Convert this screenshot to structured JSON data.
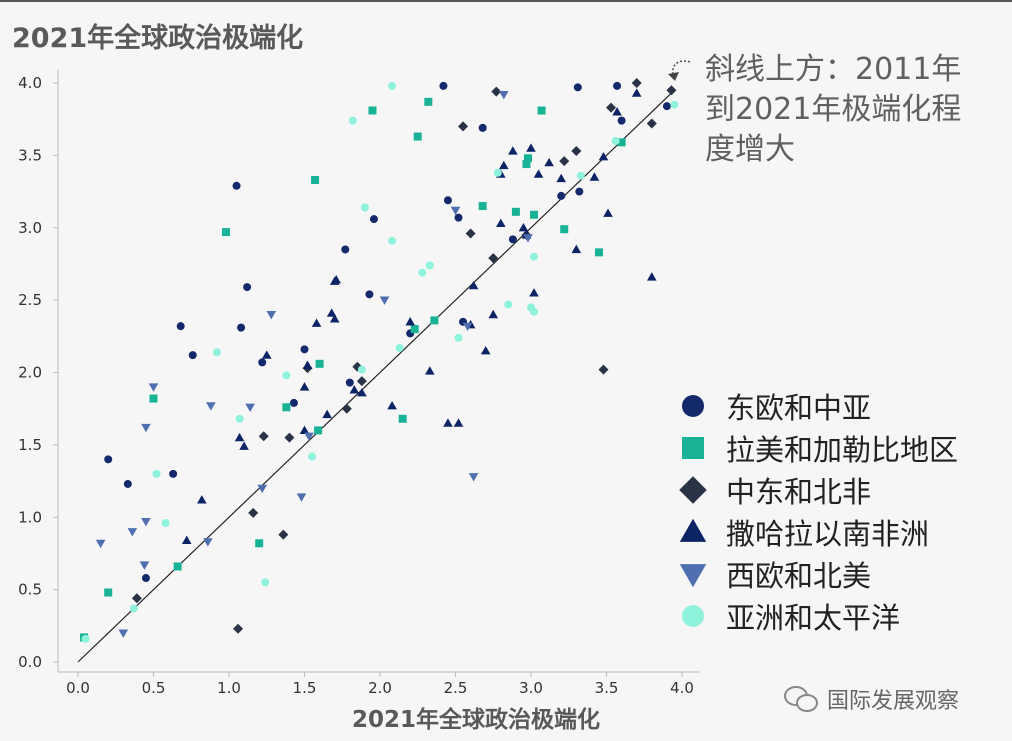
{
  "title": "2021年全球政治极端化",
  "annotation": "斜线上方：2011年\n到2021年极端化程\n度增大",
  "watermark": "国际发展观察",
  "colors": {
    "east_europe": "#13296b",
    "latin_america": "#17b394",
    "middle_east": "#2a3246",
    "sub_saharan": "#0c2466",
    "west_europe": "#4f6fb0",
    "asia_pacific": "#8ef2dc"
  },
  "legend": [
    {
      "key": "east_europe",
      "label": "东欧和中亚",
      "shape": "circle"
    },
    {
      "key": "latin_america",
      "label": "拉美和加勒比地区",
      "shape": "square"
    },
    {
      "key": "middle_east",
      "label": "中东和北非",
      "shape": "diamond"
    },
    {
      "key": "sub_saharan",
      "label": "撒哈拉以南非洲",
      "shape": "triangle-up"
    },
    {
      "key": "west_europe",
      "label": "西欧和北美",
      "shape": "triangle-down"
    },
    {
      "key": "asia_pacific",
      "label": "亚洲和太平洋",
      "shape": "circle"
    }
  ],
  "chart_data": {
    "type": "scatter",
    "title": "2021年全球政治极端化",
    "xlabel": "2021年全球政治极端化",
    "ylabel": "",
    "xlim": [
      0,
      4
    ],
    "ylim": [
      0,
      4
    ],
    "xticks": [
      "0.0",
      "0.5",
      "1.0",
      "1.5",
      "2.0",
      "2.5",
      "3.0",
      "3.5",
      "4.0"
    ],
    "yticks": [
      "0.0",
      "0.5",
      "1.0",
      "1.5",
      "2.0",
      "2.5",
      "3.0",
      "3.5",
      "4.0"
    ],
    "diagonal": [
      [
        0,
        0
      ],
      [
        3.95,
        3.95
      ]
    ],
    "series": [
      {
        "name": "东欧和中亚",
        "key": "east_europe",
        "points": [
          [
            0.2,
            1.4
          ],
          [
            0.33,
            1.23
          ],
          [
            0.45,
            0.58
          ],
          [
            0.63,
            1.3
          ],
          [
            0.68,
            2.32
          ],
          [
            0.76,
            2.12
          ],
          [
            1.05,
            3.29
          ],
          [
            1.08,
            2.31
          ],
          [
            1.12,
            2.59
          ],
          [
            1.22,
            2.07
          ],
          [
            1.43,
            1.79
          ],
          [
            1.5,
            2.16
          ],
          [
            1.77,
            2.85
          ],
          [
            1.8,
            1.93
          ],
          [
            1.93,
            2.54
          ],
          [
            1.96,
            3.06
          ],
          [
            2.2,
            2.27
          ],
          [
            2.42,
            3.98
          ],
          [
            2.45,
            3.19
          ],
          [
            2.52,
            3.07
          ],
          [
            2.55,
            2.35
          ],
          [
            2.68,
            3.69
          ],
          [
            2.88,
            2.92
          ],
          [
            3.2,
            3.22
          ],
          [
            3.31,
            3.97
          ],
          [
            3.32,
            3.25
          ],
          [
            3.57,
            3.98
          ],
          [
            3.6,
            3.74
          ],
          [
            3.9,
            3.84
          ]
        ]
      },
      {
        "name": "拉美和加勒比地区",
        "key": "latin_america",
        "points": [
          [
            0.04,
            0.17
          ],
          [
            0.2,
            0.48
          ],
          [
            0.5,
            1.82
          ],
          [
            0.66,
            0.66
          ],
          [
            0.98,
            2.97
          ],
          [
            1.2,
            0.82
          ],
          [
            1.38,
            1.76
          ],
          [
            1.57,
            3.33
          ],
          [
            1.59,
            1.6
          ],
          [
            1.6,
            2.06
          ],
          [
            1.95,
            3.81
          ],
          [
            2.15,
            1.68
          ],
          [
            2.23,
            2.3
          ],
          [
            2.25,
            3.63
          ],
          [
            2.32,
            3.87
          ],
          [
            2.36,
            2.36
          ],
          [
            2.68,
            3.15
          ],
          [
            2.9,
            3.11
          ],
          [
            2.97,
            3.44
          ],
          [
            2.98,
            3.48
          ],
          [
            3.02,
            3.09
          ],
          [
            3.07,
            3.81
          ],
          [
            3.22,
            2.99
          ],
          [
            3.45,
            2.83
          ],
          [
            3.6,
            3.59
          ]
        ]
      },
      {
        "name": "中东和北非",
        "key": "middle_east",
        "points": [
          [
            0.39,
            0.44
          ],
          [
            1.06,
            0.23
          ],
          [
            1.16,
            1.03
          ],
          [
            1.23,
            1.56
          ],
          [
            1.36,
            0.88
          ],
          [
            1.4,
            1.55
          ],
          [
            1.52,
            2.03
          ],
          [
            1.78,
            1.75
          ],
          [
            1.85,
            2.04
          ],
          [
            1.88,
            1.94
          ],
          [
            2.55,
            3.7
          ],
          [
            2.6,
            2.96
          ],
          [
            2.75,
            2.79
          ],
          [
            2.77,
            3.94
          ],
          [
            2.97,
            2.95
          ],
          [
            3.22,
            3.46
          ],
          [
            3.3,
            3.53
          ],
          [
            3.48,
            2.02
          ],
          [
            3.53,
            3.83
          ],
          [
            3.7,
            4.0
          ],
          [
            3.8,
            3.72
          ],
          [
            3.93,
            3.95
          ]
        ]
      },
      {
        "name": "撒哈拉以南非洲",
        "key": "sub_saharan",
        "points": [
          [
            0.72,
            0.84
          ],
          [
            0.82,
            1.12
          ],
          [
            1.07,
            1.55
          ],
          [
            1.1,
            1.49
          ],
          [
            1.25,
            2.12
          ],
          [
            1.5,
            1.6
          ],
          [
            1.5,
            1.9
          ],
          [
            1.52,
            2.05
          ],
          [
            1.58,
            2.34
          ],
          [
            1.65,
            1.71
          ],
          [
            1.68,
            2.41
          ],
          [
            1.7,
            2.37
          ],
          [
            1.71,
            2.64
          ],
          [
            1.7,
            2.63
          ],
          [
            1.83,
            1.88
          ],
          [
            1.88,
            1.86
          ],
          [
            2.08,
            1.77
          ],
          [
            2.2,
            2.35
          ],
          [
            2.33,
            2.01
          ],
          [
            2.45,
            1.65
          ],
          [
            2.52,
            1.65
          ],
          [
            2.6,
            2.33
          ],
          [
            2.62,
            2.6
          ],
          [
            2.7,
            2.15
          ],
          [
            2.75,
            2.4
          ],
          [
            2.8,
            3.03
          ],
          [
            2.8,
            3.37
          ],
          [
            2.82,
            3.43
          ],
          [
            2.88,
            3.53
          ],
          [
            2.95,
            3.0
          ],
          [
            2.97,
            2.95
          ],
          [
            3.0,
            3.55
          ],
          [
            3.02,
            2.55
          ],
          [
            3.05,
            3.37
          ],
          [
            3.12,
            3.45
          ],
          [
            3.2,
            3.34
          ],
          [
            3.3,
            2.85
          ],
          [
            3.42,
            3.35
          ],
          [
            3.48,
            3.49
          ],
          [
            3.51,
            3.1
          ],
          [
            3.57,
            3.8
          ],
          [
            3.7,
            3.93
          ],
          [
            3.8,
            2.66
          ]
        ]
      },
      {
        "name": "西欧和北美",
        "key": "west_europe",
        "points": [
          [
            0.15,
            0.82
          ],
          [
            0.3,
            0.2
          ],
          [
            0.36,
            0.9
          ],
          [
            0.44,
            0.67
          ],
          [
            0.45,
            0.97
          ],
          [
            0.45,
            1.62
          ],
          [
            0.5,
            1.9
          ],
          [
            0.86,
            0.83
          ],
          [
            0.88,
            1.77
          ],
          [
            1.14,
            1.76
          ],
          [
            1.22,
            1.2
          ],
          [
            1.28,
            2.4
          ],
          [
            1.48,
            1.14
          ],
          [
            1.53,
            1.56
          ],
          [
            2.03,
            2.5
          ],
          [
            2.5,
            3.12
          ],
          [
            2.58,
            2.32
          ],
          [
            2.62,
            1.28
          ],
          [
            2.82,
            3.92
          ],
          [
            2.98,
            2.93
          ]
        ]
      },
      {
        "name": "亚洲和太平洋",
        "key": "asia_pacific",
        "points": [
          [
            0.05,
            0.16
          ],
          [
            0.37,
            0.37
          ],
          [
            0.52,
            1.3
          ],
          [
            0.58,
            0.96
          ],
          [
            0.92,
            2.14
          ],
          [
            1.07,
            1.68
          ],
          [
            1.24,
            0.55
          ],
          [
            1.38,
            1.98
          ],
          [
            1.55,
            1.42
          ],
          [
            1.82,
            3.74
          ],
          [
            1.88,
            2.02
          ],
          [
            1.9,
            3.14
          ],
          [
            2.08,
            2.91
          ],
          [
            2.13,
            2.17
          ],
          [
            2.28,
            2.69
          ],
          [
            2.33,
            2.74
          ],
          [
            2.52,
            2.24
          ],
          [
            2.78,
            3.38
          ],
          [
            2.85,
            2.47
          ],
          [
            3.0,
            2.45
          ],
          [
            3.02,
            2.42
          ],
          [
            3.02,
            2.8
          ],
          [
            3.33,
            3.36
          ],
          [
            3.56,
            3.6
          ],
          [
            3.95,
            3.85
          ],
          [
            2.08,
            3.98
          ]
        ]
      }
    ]
  }
}
